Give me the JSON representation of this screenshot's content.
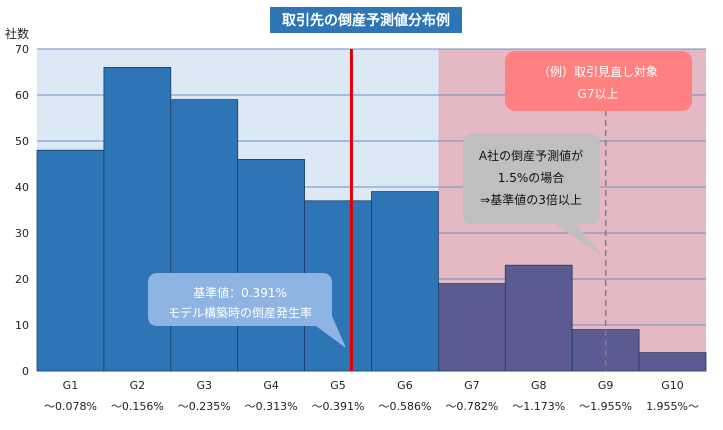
{
  "chart_data": {
    "type": "bar",
    "title": "取引先の倒産予測値分布例",
    "ylabel": "社数",
    "ylim": [
      0,
      70
    ],
    "yticks": [
      0,
      10,
      20,
      30,
      40,
      50,
      60,
      70
    ],
    "grid": true,
    "categories": [
      "G1",
      "G2",
      "G3",
      "G4",
      "G5",
      "G6",
      "G7",
      "G8",
      "G9",
      "G10"
    ],
    "ranges": [
      "～0.078%",
      "～0.156%",
      "～0.235%",
      "～0.313%",
      "～0.391%",
      "～0.586%",
      "～0.782%",
      "～1.173%",
      "～1.955%",
      "1.955%～"
    ],
    "values": [
      48,
      66,
      59,
      46,
      37,
      39,
      19,
      23,
      9,
      4
    ],
    "highlight_from_index": 6,
    "colors": {
      "bar_normal": "#2e75b6",
      "bar_highlight": "#5b5b91",
      "bg_normal": "#dde8f5",
      "bg_highlight": "#e4b9c4",
      "threshold_line": "#e00000",
      "title_bg": "#2e75b6"
    },
    "threshold_position": 4.7,
    "dashed_line_position": 8.5,
    "annotations": {
      "baseline_line1": "基準値：0.391%",
      "baseline_line2": "モデル構築時の倒産発生率",
      "company_line1": "A社の倒産予測値が",
      "company_line2": "1.5%の場合",
      "company_line3": "⇒基準値の3倍以上",
      "review_line1": "（例）取引見直し対象",
      "review_line2": "G7以上"
    }
  }
}
